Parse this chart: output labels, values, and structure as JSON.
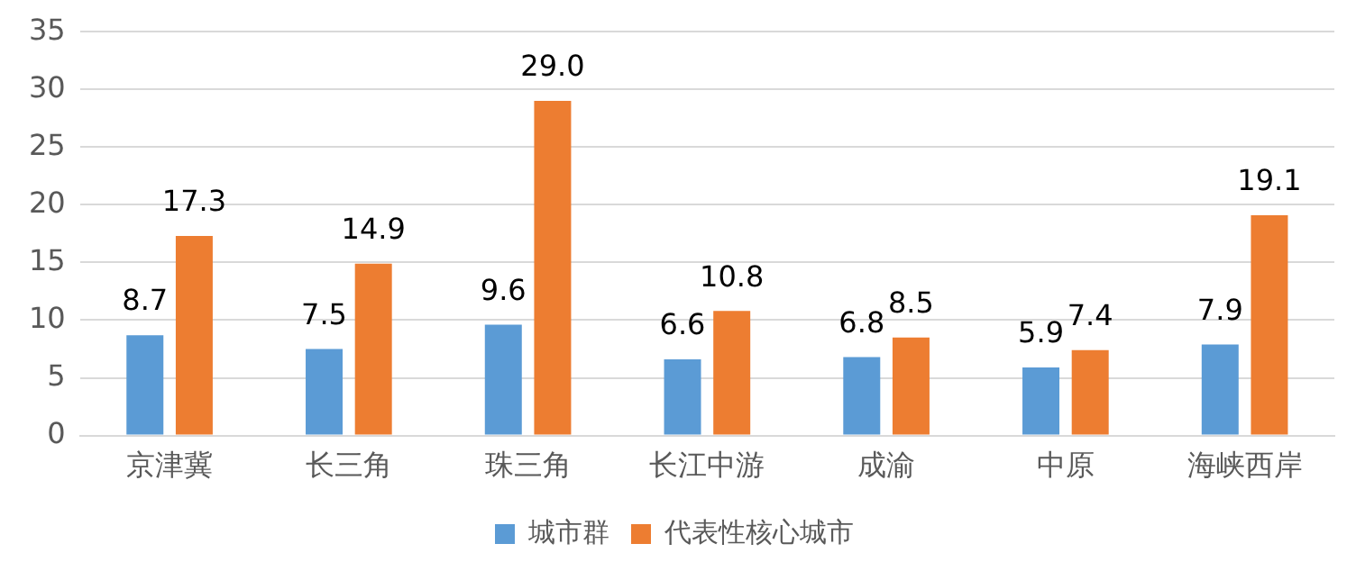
{
  "chart_data": {
    "type": "bar",
    "categories": [
      "京津冀",
      "长三角",
      "珠三角",
      "长江中游",
      "成渝",
      "中原",
      "海峡西岸"
    ],
    "series": [
      {
        "name": "城市群",
        "color": "#5b9bd5",
        "values": [
          8.7,
          7.5,
          9.6,
          6.6,
          6.8,
          5.9,
          7.9
        ]
      },
      {
        "name": "代表性核心城市",
        "color": "#ed7d31",
        "values": [
          17.3,
          14.9,
          29.0,
          10.8,
          8.5,
          7.4,
          19.1
        ]
      }
    ],
    "value_labels": [
      [
        "8.7",
        "7.5",
        "9.6",
        "6.6",
        "6.8",
        "5.9",
        "7.9"
      ],
      [
        "17.3",
        "14.9",
        "29.0",
        "10.8",
        "8.5",
        "7.4",
        "19.1"
      ]
    ],
    "ylim": [
      0,
      35
    ],
    "yticks": [
      0,
      5,
      10,
      15,
      20,
      25,
      30,
      35
    ],
    "grid": "y",
    "legend": "bottom"
  }
}
